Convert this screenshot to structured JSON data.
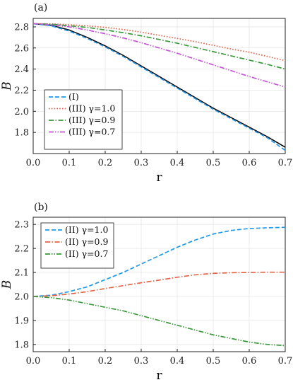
{
  "chart_data": [
    {
      "type": "line",
      "panel_label": "(a)",
      "xlabel": "r",
      "ylabel": "B",
      "xlim": [
        0,
        0.7
      ],
      "ylim": [
        1.6,
        2.88
      ],
      "xticks": [
        "0.0",
        "0.1",
        "0.2",
        "0.3",
        "0.4",
        "0.5",
        "0.6",
        "0.7"
      ],
      "yticks": [
        "1.8",
        "2.0",
        "2.2",
        "2.4",
        "2.6",
        "2.8"
      ],
      "grid": true,
      "legend_position": "bottom-left",
      "x": [
        0.0,
        0.05,
        0.1,
        0.15,
        0.2,
        0.25,
        0.3,
        0.35,
        0.4,
        0.45,
        0.5,
        0.55,
        0.6,
        0.65,
        0.7
      ],
      "series": [
        {
          "name": "",
          "legend": false,
          "color": "#000000",
          "dash": "solid",
          "values": [
            2.83,
            2.815,
            2.77,
            2.7,
            2.62,
            2.53,
            2.43,
            2.33,
            2.23,
            2.13,
            2.03,
            1.94,
            1.85,
            1.76,
            1.66
          ]
        },
        {
          "name": "(I)",
          "legend": true,
          "color": "#1f9be9",
          "dash": "dashed",
          "values": [
            2.83,
            2.81,
            2.76,
            2.69,
            2.61,
            2.52,
            2.42,
            2.32,
            2.22,
            2.12,
            2.02,
            1.93,
            1.84,
            1.75,
            1.63
          ]
        },
        {
          "name": "(III) γ=1.0",
          "legend": true,
          "color": "#e3664a",
          "dash": "dotted",
          "values": [
            2.83,
            2.828,
            2.82,
            2.81,
            2.795,
            2.775,
            2.75,
            2.72,
            2.69,
            2.66,
            2.625,
            2.59,
            2.56,
            2.52,
            2.48
          ]
        },
        {
          "name": "(III) γ=0.9",
          "legend": true,
          "color": "#3a9a3a",
          "dash": "dashdot",
          "values": [
            2.83,
            2.825,
            2.81,
            2.795,
            2.77,
            2.745,
            2.715,
            2.68,
            2.645,
            2.605,
            2.565,
            2.525,
            2.485,
            2.445,
            2.4
          ]
        },
        {
          "name": "(III) γ=0.7",
          "legend": true,
          "color": "#c455d6",
          "dash": "dashdotdot",
          "values": [
            2.83,
            2.82,
            2.8,
            2.77,
            2.735,
            2.695,
            2.65,
            2.6,
            2.55,
            2.495,
            2.44,
            2.385,
            2.33,
            2.28,
            2.23
          ]
        }
      ]
    },
    {
      "type": "line",
      "panel_label": "(b)",
      "xlabel": "r",
      "ylabel": "B",
      "xlim": [
        0,
        0.7
      ],
      "ylim": [
        1.77,
        2.33
      ],
      "xticks": [
        "0.0",
        "0.1",
        "0.2",
        "0.3",
        "0.4",
        "0.5",
        "0.6",
        "0.7"
      ],
      "yticks": [
        "1.8",
        "1.9",
        "2.0",
        "2.1",
        "2.2",
        "2.3"
      ],
      "grid": true,
      "legend_position": "top-left",
      "x": [
        0.0,
        0.05,
        0.1,
        0.15,
        0.2,
        0.25,
        0.3,
        0.35,
        0.4,
        0.45,
        0.5,
        0.55,
        0.6,
        0.65,
        0.7
      ],
      "series": [
        {
          "name": "(II) γ=1.0",
          "legend": true,
          "color": "#1f9be9",
          "dash": "dashed",
          "values": [
            2.0,
            2.005,
            2.02,
            2.04,
            2.07,
            2.1,
            2.135,
            2.17,
            2.205,
            2.235,
            2.26,
            2.275,
            2.283,
            2.286,
            2.288
          ]
        },
        {
          "name": "(II) γ=0.9",
          "legend": true,
          "color": "#e3664a",
          "dash": "dashdot",
          "values": [
            2.0,
            2.003,
            2.01,
            2.02,
            2.033,
            2.045,
            2.057,
            2.068,
            2.08,
            2.09,
            2.096,
            2.099,
            2.1,
            2.101,
            2.101
          ]
        },
        {
          "name": "(II) γ=0.7",
          "legend": true,
          "color": "#3a9a3a",
          "dash": "dashdotdot",
          "values": [
            2.0,
            1.995,
            1.985,
            1.97,
            1.955,
            1.94,
            1.92,
            1.9,
            1.88,
            1.86,
            1.84,
            1.825,
            1.81,
            1.8,
            1.795
          ]
        }
      ]
    }
  ]
}
